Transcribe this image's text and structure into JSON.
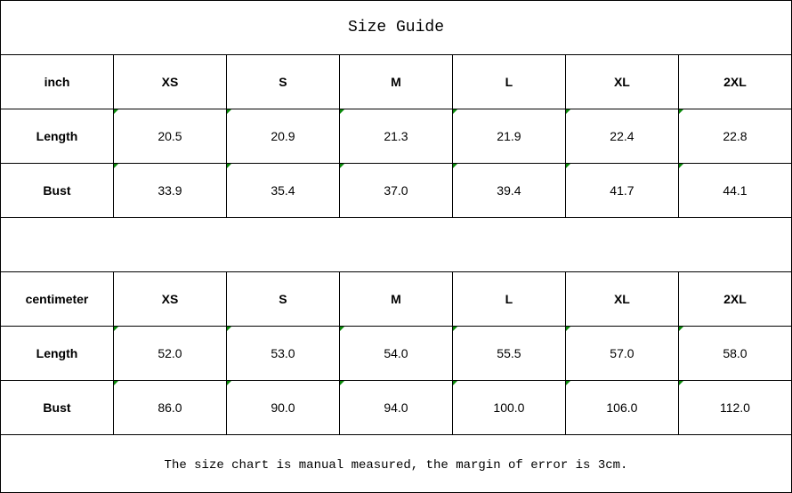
{
  "title": "Size Guide",
  "inch": {
    "unit": "inch",
    "sizes": [
      "XS",
      "S",
      "M",
      "L",
      "XL",
      "2XL"
    ],
    "rows": [
      {
        "label": "Length",
        "values": [
          "20.5",
          "20.9",
          "21.3",
          "21.9",
          "22.4",
          "22.8"
        ]
      },
      {
        "label": "Bust",
        "values": [
          "33.9",
          "35.4",
          "37.0",
          "39.4",
          "41.7",
          "44.1"
        ]
      }
    ]
  },
  "cm": {
    "unit": "centimeter",
    "sizes": [
      "XS",
      "S",
      "M",
      "L",
      "XL",
      "2XL"
    ],
    "rows": [
      {
        "label": "Length",
        "values": [
          "52.0",
          "53.0",
          "54.0",
          "55.5",
          "57.0",
          "58.0"
        ]
      },
      {
        "label": "Bust",
        "values": [
          "86.0",
          "90.0",
          "94.0",
          "100.0",
          "106.0",
          "112.0"
        ]
      }
    ]
  },
  "note": "The size chart is manual measured, the margin of error is 3cm.",
  "colors": {
    "cell_marker": "#0a8a0a",
    "border": "#000000"
  }
}
